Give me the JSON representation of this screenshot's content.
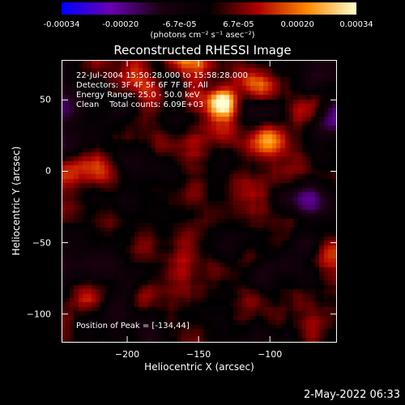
{
  "colorbar": {
    "ticks": [
      "-0.00034",
      "-0.00020",
      "-6.7e-05",
      "6.7e-05",
      "0.00020",
      "0.00034"
    ],
    "unit": "(photons cm⁻² s⁻¹ asec⁻²)",
    "colors": [
      "#0000ff",
      "#6a00b0",
      "#1a0010",
      "#000000",
      "#b00000",
      "#ff8800",
      "#ffffd0"
    ]
  },
  "chart_data": {
    "type": "heatmap",
    "title": "Reconstructed RHESSI Image",
    "xlabel": "Heliocentric X (arcsec)",
    "ylabel": "Heliocentric Y (arcsec)",
    "xlim": [
      -246,
      -53
    ],
    "ylim": [
      -120,
      78
    ],
    "xticks": [
      -200,
      -150,
      -100
    ],
    "yticks": [
      50,
      0,
      -50,
      -100
    ],
    "peak": [
      -134,
      44
    ],
    "hot_spots": [
      [
        -134,
        48
      ],
      [
        -220,
        10
      ],
      [
        -160,
        80
      ],
      [
        -108,
        60
      ],
      [
        -58,
        -60
      ],
      [
        -230,
        -90
      ],
      [
        -100,
        20
      ]
    ]
  },
  "annotations": {
    "time": "22-Jul-2004 15:50:28.000 to 15:58:28.000",
    "detectors": "Detectors: 3F 4F 5F 6F 7F 8F, All",
    "energy": "Energy Range: 25.0 - 50.0 keV",
    "clean": "Clean    Total counts: 6.09E+03",
    "peak": "Position of Peak = [-134,44]"
  },
  "timestamp": "2-May-2022 06:33"
}
